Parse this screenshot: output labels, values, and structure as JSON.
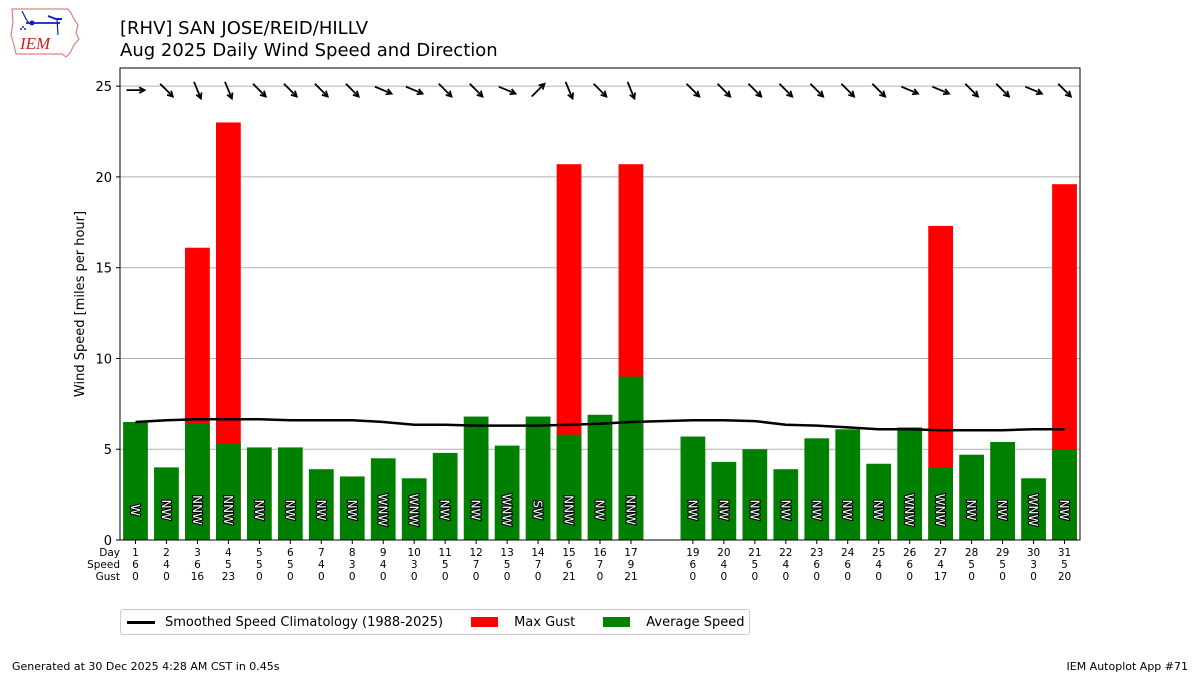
{
  "header": {
    "logo_text": "IEM",
    "title_line1": "[RHV] SAN JOSE/REID/HILLV",
    "title_line2": "Aug 2025 Daily Wind Speed and Direction"
  },
  "colors": {
    "gust": "#ff0000",
    "average": "#008000",
    "climatology": "#000000",
    "grid": "#b0b0b0"
  },
  "chart_data": {
    "type": "bar",
    "title": "Aug 2025 Daily Wind Speed and Direction",
    "station": "[RHV] SAN JOSE/REID/HILLV",
    "xlabel": "",
    "ylabel": "Wind Speed [miles per hour]",
    "ylim": [
      0,
      26
    ],
    "yticks": [
      0,
      5,
      10,
      15,
      20,
      25
    ],
    "grid": "horizontal",
    "legend_position": "bottom",
    "table_row_labels": [
      "Day",
      "Speed",
      "Gust"
    ],
    "days": [
      1,
      2,
      3,
      4,
      5,
      6,
      7,
      8,
      9,
      10,
      11,
      12,
      13,
      14,
      15,
      16,
      17,
      19,
      20,
      21,
      22,
      23,
      24,
      25,
      26,
      27,
      28,
      29,
      30,
      31
    ],
    "speed_label": [
      6,
      4,
      6,
      5,
      5,
      5,
      4,
      3,
      4,
      3,
      5,
      7,
      5,
      7,
      6,
      7,
      9,
      6,
      4,
      5,
      4,
      6,
      6,
      4,
      6,
      4,
      5,
      5,
      3,
      5
    ],
    "gust_label": [
      0,
      0,
      16,
      23,
      0,
      0,
      0,
      0,
      0,
      0,
      0,
      0,
      0,
      0,
      21,
      0,
      21,
      0,
      0,
      0,
      0,
      0,
      0,
      0,
      0,
      17,
      0,
      0,
      0,
      20
    ],
    "series": [
      {
        "name": "Average Speed",
        "values": [
          6.5,
          4.0,
          6.4,
          5.3,
          5.1,
          5.1,
          3.9,
          3.5,
          4.5,
          3.4,
          4.8,
          6.8,
          5.2,
          6.8,
          5.8,
          6.9,
          9.0,
          5.7,
          4.3,
          5.0,
          3.9,
          5.6,
          6.1,
          4.2,
          6.2,
          4.0,
          4.7,
          5.4,
          3.4,
          5.0
        ]
      },
      {
        "name": "Max Gust",
        "values": [
          0,
          0,
          16.1,
          23.0,
          0,
          0,
          0,
          0,
          0,
          0,
          0,
          0,
          0,
          0,
          20.7,
          0,
          20.7,
          0,
          0,
          0,
          0,
          0,
          0,
          0,
          0,
          17.3,
          0,
          0,
          0,
          19.6
        ]
      },
      {
        "name": "Smoothed Speed Climatology (1988-2025)",
        "values": [
          6.5,
          6.6,
          6.65,
          6.65,
          6.65,
          6.6,
          6.6,
          6.6,
          6.5,
          6.35,
          6.35,
          6.3,
          6.3,
          6.3,
          6.35,
          6.4,
          6.5,
          6.6,
          6.6,
          6.55,
          6.35,
          6.3,
          6.2,
          6.1,
          6.1,
          6.05,
          6.05,
          6.05,
          6.1,
          6.1
        ]
      }
    ],
    "direction_text": [
      "W",
      "NW",
      "NNW",
      "NNW",
      "NW",
      "NW",
      "NW",
      "NW",
      "WNW",
      "WNW",
      "NW",
      "NW",
      "WNW",
      "SW",
      "NNW",
      "NW",
      "NNW",
      "NW",
      "NW",
      "NW",
      "NW",
      "NW",
      "NW",
      "NW",
      "WNW",
      "WNW",
      "NW",
      "NW",
      "WNW",
      "NW"
    ],
    "direction_arrow_deg": [
      270,
      315,
      337.5,
      337.5,
      315,
      315,
      315,
      315,
      292.5,
      292.5,
      315,
      315,
      292.5,
      225,
      337.5,
      315,
      337.5,
      315,
      315,
      315,
      315,
      315,
      315,
      315,
      292.5,
      292.5,
      315,
      315,
      292.5,
      315
    ],
    "arrow_row_value": 25
  },
  "legend": {
    "items": [
      {
        "label": "Smoothed Speed Climatology (1988-2025)",
        "kind": "line",
        "color": "#000000"
      },
      {
        "label": "Max Gust",
        "kind": "box",
        "color": "#ff0000"
      },
      {
        "label": "Average Speed",
        "kind": "box",
        "color": "#008000"
      }
    ]
  },
  "footer": {
    "left": "Generated at 30 Dec 2025 4:28 AM CST in 0.45s",
    "right": "IEM Autoplot App #71"
  }
}
